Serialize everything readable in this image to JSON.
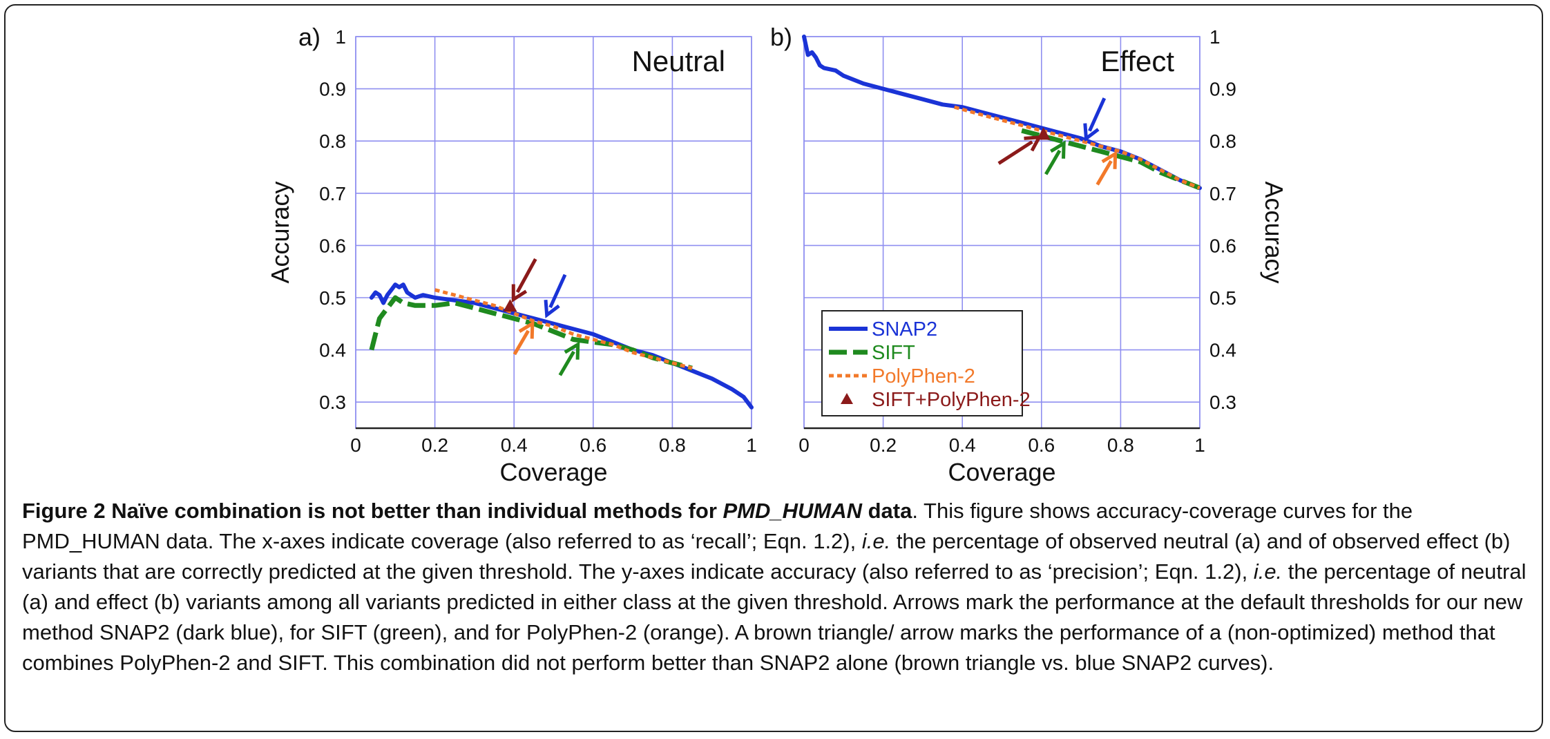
{
  "chart_data": [
    {
      "type": "line",
      "panel_label": "a)",
      "title": "Neutral",
      "xlabel": "Coverage",
      "ylabel": "Accuracy",
      "xlim": [
        0,
        1
      ],
      "ylim": [
        0.25,
        1
      ],
      "xticks": [
        "0",
        "0.2",
        "0.4",
        "0.6",
        "0.8",
        "1"
      ],
      "yticks": [
        "1",
        "0.9",
        "0.8",
        "0.7",
        "0.6",
        "0.5",
        "0.4",
        "0.3"
      ],
      "grid": true,
      "series": [
        {
          "name": "SNAP2",
          "color": "#1a33d6",
          "style": "solid",
          "x": [
            0.04,
            0.05,
            0.06,
            0.07,
            0.08,
            0.09,
            0.1,
            0.11,
            0.12,
            0.13,
            0.14,
            0.15,
            0.17,
            0.2,
            0.25,
            0.3,
            0.35,
            0.4,
            0.45,
            0.5,
            0.55,
            0.6,
            0.65,
            0.7,
            0.75,
            0.8,
            0.85,
            0.9,
            0.95,
            0.98,
            1.0
          ],
          "y": [
            0.5,
            0.51,
            0.505,
            0.49,
            0.505,
            0.515,
            0.525,
            0.52,
            0.525,
            0.51,
            0.505,
            0.5,
            0.505,
            0.5,
            0.495,
            0.49,
            0.48,
            0.47,
            0.46,
            0.45,
            0.44,
            0.43,
            0.415,
            0.4,
            0.39,
            0.375,
            0.36,
            0.345,
            0.325,
            0.31,
            0.29
          ]
        },
        {
          "name": "SIFT",
          "color": "#1f8a1f",
          "style": "dashed",
          "x": [
            0.04,
            0.05,
            0.06,
            0.08,
            0.1,
            0.12,
            0.15,
            0.2,
            0.25,
            0.3,
            0.35,
            0.4,
            0.45,
            0.5,
            0.55,
            0.6,
            0.65,
            0.7,
            0.75,
            0.8,
            0.85
          ],
          "y": [
            0.4,
            0.43,
            0.46,
            0.48,
            0.5,
            0.49,
            0.485,
            0.485,
            0.49,
            0.48,
            0.47,
            0.46,
            0.45,
            0.435,
            0.42,
            0.415,
            0.41,
            0.4,
            0.385,
            0.375,
            0.365
          ]
        },
        {
          "name": "PolyPhen-2",
          "color": "#f2792a",
          "style": "dotted",
          "x": [
            0.2,
            0.25,
            0.3,
            0.35,
            0.4,
            0.45,
            0.5,
            0.55,
            0.6,
            0.65,
            0.7,
            0.75,
            0.8,
            0.85
          ],
          "y": [
            0.515,
            0.505,
            0.495,
            0.485,
            0.47,
            0.455,
            0.445,
            0.43,
            0.42,
            0.41,
            0.395,
            0.385,
            0.375,
            0.365
          ]
        }
      ],
      "markers": [
        {
          "name": "SIFT+PolyPhen-2",
          "x": 0.39,
          "y": 0.484,
          "color": "#8b1a1a"
        }
      ],
      "arrows": [
        {
          "color": "#8b1a1a",
          "x": 0.395,
          "y": 0.492
        },
        {
          "color": "#1a33d6",
          "x": 0.48,
          "y": 0.462
        },
        {
          "color": "#f2792a",
          "x": 0.45,
          "y": 0.455
        },
        {
          "color": "#1f8a1f",
          "x": 0.565,
          "y": 0.415
        }
      ]
    },
    {
      "type": "line",
      "panel_label": "b)",
      "title": "Effect",
      "xlabel": "Coverage",
      "ylabel": "Accuracy",
      "xlim": [
        0,
        1
      ],
      "ylim": [
        0.25,
        1
      ],
      "xticks": [
        "0",
        "0.2",
        "0.4",
        "0.6",
        "0.8",
        "1"
      ],
      "yticks": [
        "1",
        "0.9",
        "0.8",
        "0.7",
        "0.6",
        "0.5",
        "0.4",
        "0.3"
      ],
      "grid": true,
      "legend_position": "bottom-left",
      "series": [
        {
          "name": "SNAP2",
          "color": "#1a33d6",
          "style": "solid",
          "x": [
            0.0,
            0.01,
            0.02,
            0.03,
            0.04,
            0.05,
            0.08,
            0.1,
            0.15,
            0.2,
            0.25,
            0.3,
            0.35,
            0.4,
            0.45,
            0.5,
            0.55,
            0.6,
            0.65,
            0.7,
            0.75,
            0.8,
            0.85,
            0.9,
            0.95,
            1.0
          ],
          "y": [
            1.0,
            0.965,
            0.97,
            0.96,
            0.945,
            0.94,
            0.935,
            0.925,
            0.91,
            0.9,
            0.89,
            0.88,
            0.87,
            0.865,
            0.855,
            0.845,
            0.835,
            0.825,
            0.815,
            0.805,
            0.79,
            0.78,
            0.765,
            0.745,
            0.725,
            0.71
          ]
        },
        {
          "name": "SIFT",
          "color": "#1f8a1f",
          "style": "dashed",
          "x": [
            0.55,
            0.6,
            0.65,
            0.7,
            0.75,
            0.8,
            0.85,
            0.9,
            0.95,
            1.0
          ],
          "y": [
            0.82,
            0.81,
            0.8,
            0.79,
            0.78,
            0.77,
            0.76,
            0.74,
            0.725,
            0.71
          ]
        },
        {
          "name": "PolyPhen-2",
          "color": "#f2792a",
          "style": "dotted",
          "x": [
            0.38,
            0.45,
            0.5,
            0.55,
            0.6,
            0.65,
            0.7,
            0.75,
            0.8,
            0.85,
            0.9,
            0.95,
            1.0
          ],
          "y": [
            0.865,
            0.85,
            0.84,
            0.83,
            0.82,
            0.81,
            0.8,
            0.79,
            0.78,
            0.765,
            0.745,
            0.725,
            0.71
          ]
        },
        {
          "name": "SIFT+PolyPhen-2",
          "color": "#8b1a1a",
          "style": "marker"
        }
      ],
      "markers": [
        {
          "name": "SIFT+PolyPhen-2",
          "x": 0.605,
          "y": 0.813,
          "color": "#8b1a1a"
        }
      ],
      "arrows": [
        {
          "color": "#8b1a1a",
          "x": 0.6,
          "y": 0.81
        },
        {
          "color": "#1a33d6",
          "x": 0.71,
          "y": 0.8
        },
        {
          "color": "#1f8a1f",
          "x": 0.66,
          "y": 0.8
        },
        {
          "color": "#f2792a",
          "x": 0.79,
          "y": 0.78
        }
      ]
    }
  ],
  "caption": {
    "bold_lead": "Figure 2 Naïve combination is not better than individual methods for ",
    "bold_italic": "PMD_HUMAN",
    "bold_tail": " data",
    "part1": ". This figure shows accuracy-coverage curves for the PMD_HUMAN data. The x-axes indicate coverage (also referred to as ‘recall’; Eqn. 1.2), ",
    "ie1": "i.e.",
    "part2": " the percentage of observed neutral (a) and of observed effect (b) variants that are correctly predicted at the given threshold. The y-axes indicate accuracy (also referred to as ‘precision’; Eqn. 1.2), ",
    "ie2": "i.e.",
    "part3": " the percentage of neutral (a) and effect (b) variants among all variants predicted in either class at the given threshold. Arrows mark the performance at the default thresholds for our new method SNAP2 (dark blue), for SIFT (green), and for PolyPhen-2 (orange). A brown triangle/ arrow marks the performance of a (non-optimized) method that combines PolyPhen-2 and SIFT. This combination did not perform better than SNAP2 alone (brown triangle vs. blue SNAP2 curves)."
  }
}
